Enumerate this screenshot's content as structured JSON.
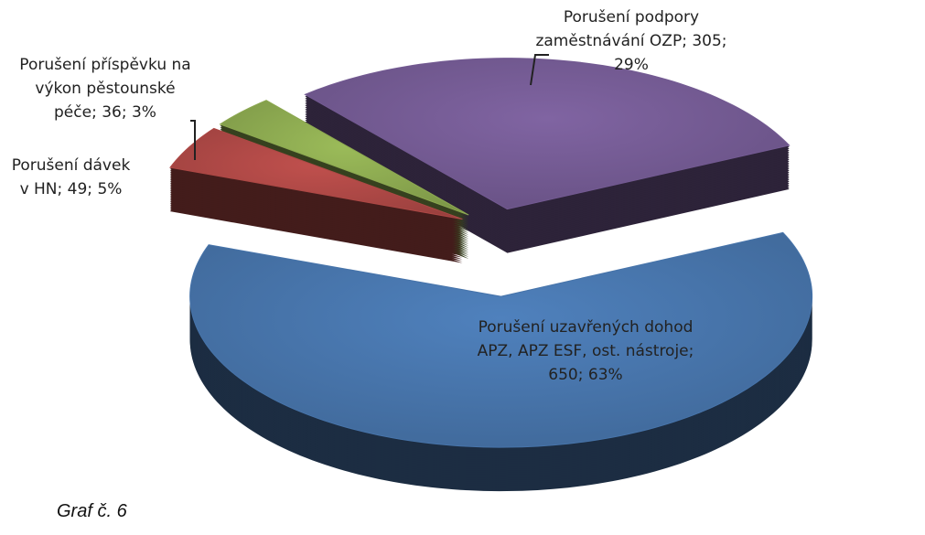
{
  "chart_data": {
    "type": "pie",
    "categories": [
      "Porušení uzavřených dohod APZ, APZ ESF, ost. nástroje;",
      "Porušení dávek v HN;",
      "Porušení příspěvku na výkon pěstounské péče;",
      "Porušení podpory zaměstnávání OZP;"
    ],
    "values": [
      650,
      49,
      36,
      305
    ],
    "value_labels": [
      "650;",
      "49;",
      "36;",
      "305;"
    ],
    "percentages": [
      63,
      5,
      3,
      29
    ],
    "percent_labels": [
      "63%",
      "5%",
      "3%",
      "29%"
    ],
    "colors": [
      "#4f81bd",
      "#c0504d",
      "#9bbb59",
      "#8064a2"
    ]
  },
  "caption": "Graf č. 6"
}
